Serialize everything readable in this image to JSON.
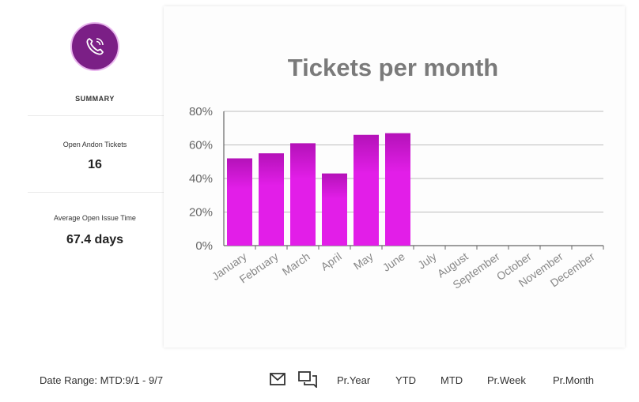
{
  "summary": {
    "icon": "phone-icon",
    "label": "SUMMARY",
    "accent_color": "#7b1f86"
  },
  "stats": {
    "open_tickets_label": "Open Andon Tickets",
    "open_tickets_value": "16",
    "avg_time_label": "Average Open Issue Time",
    "avg_time_value": "67.4 days"
  },
  "chart_data": {
    "type": "bar",
    "title": "Tickets per month",
    "categories": [
      "January",
      "February",
      "March",
      "April",
      "May",
      "June",
      "July",
      "August",
      "September",
      "October",
      "November",
      "December"
    ],
    "values": [
      52,
      55,
      61,
      43,
      66,
      67,
      null,
      null,
      null,
      null,
      null,
      null
    ],
    "ylim": [
      0,
      80
    ],
    "yticks": [
      "0%",
      "20%",
      "40%",
      "60%",
      "80%"
    ],
    "grid": true,
    "bar_color": "#e21ee8",
    "bar_color_top": "#b412b8"
  },
  "footer": {
    "date_range": "Date Range: MTD:9/1 - 9/7",
    "icons": [
      "email-icon",
      "chat-icon"
    ],
    "periods": [
      "Pr.Year",
      "YTD",
      "MTD",
      "Pr.Week",
      "Pr.Month"
    ]
  }
}
